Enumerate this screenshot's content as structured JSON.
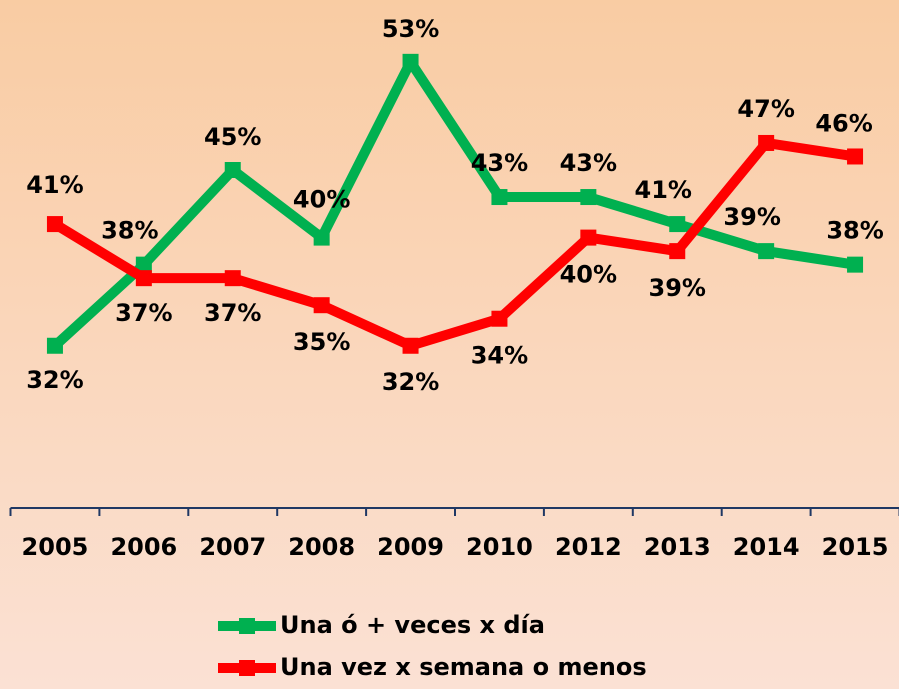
{
  "chart_data": {
    "type": "line",
    "categories": [
      "2005",
      "2006",
      "2007",
      "2008",
      "2009",
      "2010",
      "2012",
      "2013",
      "2014",
      "2015"
    ],
    "series": [
      {
        "name": "Una ó + veces x día",
        "color": "#00b050",
        "values": [
          32,
          38,
          45,
          40,
          53,
          43,
          43,
          41,
          39,
          38
        ],
        "value_labels": [
          "32%",
          "38%",
          "45%",
          "40%",
          "53%",
          "43%",
          "43%",
          "41%",
          "39%",
          "38%"
        ]
      },
      {
        "name": "Una vez x semana o menos",
        "color": "#ff0000",
        "values": [
          41,
          37,
          37,
          35,
          32,
          34,
          40,
          39,
          47,
          46
        ],
        "value_labels": [
          "41%",
          "37%",
          "37%",
          "35%",
          "32%",
          "34%",
          "40%",
          "39%",
          "47%",
          "46%"
        ]
      }
    ],
    "ylim": [
      20,
      60
    ],
    "legend": "bottom"
  }
}
